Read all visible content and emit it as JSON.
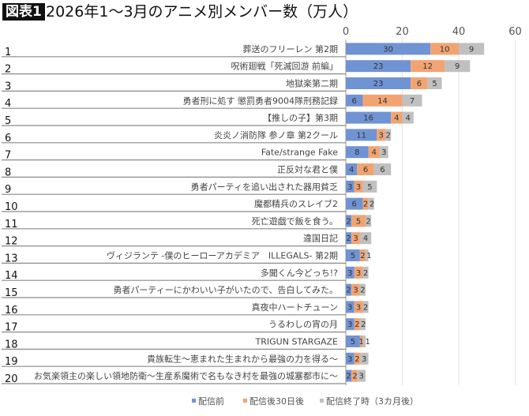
{
  "header": {
    "badge": "図表1",
    "title": "2026年1〜3月のアニメ別メンバー数（万人）"
  },
  "colors": {
    "blue": "#7093d4",
    "orange": "#f1a472",
    "gray": "#c0c0c0"
  },
  "chart_data": {
    "type": "bar",
    "orientation": "horizontal",
    "stacked": true,
    "title": "2026年1〜3月のアニメ別メンバー数（万人）",
    "xlim": [
      0,
      60
    ],
    "xticks": [
      "0",
      "20",
      "40",
      "60"
    ],
    "grid": true,
    "legend": "bottom",
    "ranks": [
      "1",
      "2",
      "3",
      "4",
      "5",
      "6",
      "7",
      "8",
      "9",
      "10",
      "11",
      "12",
      "13",
      "14",
      "15",
      "16",
      "17",
      "18",
      "19",
      "20"
    ],
    "categories": [
      "葬送のフリーレン 第2期",
      "呪術廻戦「死滅回游 前編」",
      "地獄楽第二期",
      "勇者刑に処す 懲罰勇者9004隊刑務記録",
      "【推しの子】第3期",
      "炎炎ノ消防隊 参ノ章 第2クール",
      "Fate/strange Fake",
      "正反対な君と僕",
      "勇者パーティを追い出された器用貧乏",
      "魔都精兵のスレイブ2",
      "死亡遊戯で飯を食う。",
      "違国日記",
      "ヴィジランテ -僕のヒーローアカデミア　ILLEGALS- 第2期",
      "多聞くん今どっち!?",
      "勇者パーティーにかわいい子がいたので、告白してみた。",
      "真夜中ハートチューン",
      "うるわしの宵の月",
      "TRIGUN STARGAZE",
      "貴族転生～恵まれた生まれから最強の力を得る～",
      "お気楽領主の楽しい領地防衛～生産系魔術で名もなき村を最強の城塞都市に～"
    ],
    "series": [
      {
        "name": "配信前",
        "color": "#7093d4",
        "values": [
          30,
          23,
          23,
          6,
          16,
          11,
          8,
          4,
          3,
          6,
          2,
          2,
          5,
          3,
          2,
          3,
          3,
          5,
          3,
          2
        ]
      },
      {
        "name": "配信後30日後",
        "color": "#f1a472",
        "values": [
          10,
          12,
          6,
          14,
          4,
          3,
          4,
          6,
          3,
          2,
          5,
          3,
          2,
          3,
          3,
          3,
          2,
          1,
          2,
          2
        ]
      },
      {
        "name": "配信終了時（3カ月後）",
        "color": "#c0c0c0",
        "values": [
          9,
          9,
          5,
          7,
          4,
          2,
          3,
          6,
          5,
          2,
          2,
          4,
          1,
          2,
          2,
          2,
          2,
          1,
          3,
          3
        ]
      }
    ]
  }
}
